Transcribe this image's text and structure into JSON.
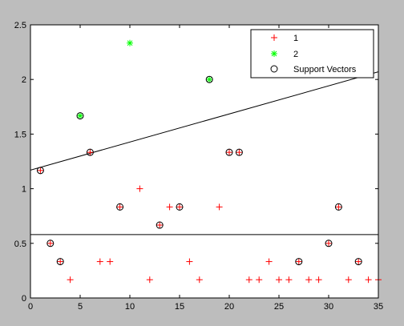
{
  "chart_data": {
    "type": "scatter",
    "xlim": [
      0,
      35
    ],
    "ylim": [
      0,
      2.5
    ],
    "x_ticks": [
      0,
      5,
      10,
      15,
      20,
      25,
      30,
      35
    ],
    "y_ticks": [
      0,
      0.5,
      1,
      1.5,
      2,
      2.5
    ],
    "x_tick_labels": [
      "0",
      "5",
      "10",
      "15",
      "20",
      "25",
      "30",
      "35"
    ],
    "y_tick_labels": [
      "0",
      "0.5",
      "1",
      "1.5",
      "2",
      "2.5"
    ],
    "grid": false,
    "legend_position": "top-right",
    "background_color": "#bdbdbd",
    "plot_background_color": "#ffffff",
    "series": [
      {
        "name": "1",
        "marker": "plus",
        "color": "#ff0000",
        "points": [
          [
            2,
            0.5
          ],
          [
            3,
            0.333
          ],
          [
            4,
            0.167
          ],
          [
            7,
            0.333
          ],
          [
            8,
            0.333
          ],
          [
            12,
            0.167
          ],
          [
            16,
            0.333
          ],
          [
            17,
            0.167
          ],
          [
            22,
            0.167
          ],
          [
            23,
            0.167
          ],
          [
            24,
            0.333
          ],
          [
            25,
            0.167
          ],
          [
            26,
            0.167
          ],
          [
            27,
            0.333
          ],
          [
            28,
            0.167
          ],
          [
            29,
            0.167
          ],
          [
            30,
            0.5
          ],
          [
            32,
            0.167
          ],
          [
            33,
            0.333
          ],
          [
            34,
            0.167
          ],
          [
            35,
            0.167
          ],
          [
            1,
            1.167
          ],
          [
            6,
            1.333
          ],
          [
            9,
            0.833
          ],
          [
            11,
            1.0
          ],
          [
            13,
            0.667
          ],
          [
            14,
            0.833
          ],
          [
            15,
            0.833
          ],
          [
            19,
            0.833
          ],
          [
            20,
            1.333
          ],
          [
            21,
            1.333
          ],
          [
            31,
            0.833
          ]
        ]
      },
      {
        "name": "2",
        "marker": "asterisk",
        "color": "#00ff00",
        "points": [
          [
            5,
            1.667
          ],
          [
            10,
            2.333
          ],
          [
            18,
            2.0
          ]
        ]
      },
      {
        "name": "Support Vectors",
        "marker": "circle",
        "color": "#000000",
        "points": [
          [
            1,
            1.167
          ],
          [
            2,
            0.5
          ],
          [
            3,
            0.333
          ],
          [
            5,
            1.667
          ],
          [
            6,
            1.333
          ],
          [
            9,
            0.833
          ],
          [
            13,
            0.667
          ],
          [
            15,
            0.833
          ],
          [
            18,
            2.0
          ],
          [
            20,
            1.333
          ],
          [
            21,
            1.333
          ],
          [
            27,
            0.333
          ],
          [
            30,
            0.5
          ],
          [
            31,
            0.833
          ],
          [
            33,
            0.333
          ]
        ]
      }
    ],
    "lines": [
      {
        "color": "#000000",
        "points": [
          [
            0,
            1.17
          ],
          [
            35,
            2.07
          ]
        ]
      },
      {
        "color": "#000000",
        "points": [
          [
            0,
            0.58
          ],
          [
            35,
            0.58
          ]
        ]
      }
    ],
    "legend": [
      {
        "label": "1",
        "marker": "plus",
        "color": "#ff0000"
      },
      {
        "label": "2",
        "marker": "asterisk",
        "color": "#00ff00"
      },
      {
        "label": "Support Vectors",
        "marker": "circle",
        "color": "#000000"
      }
    ]
  }
}
